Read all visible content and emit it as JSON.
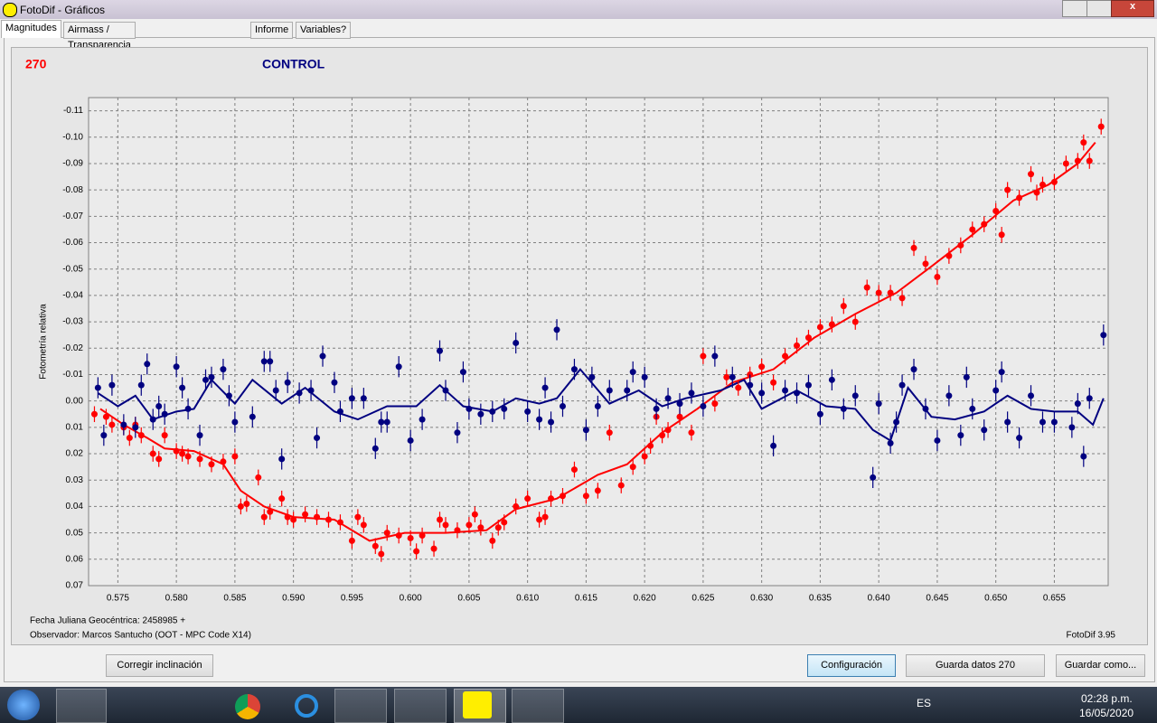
{
  "window": {
    "title": "FotoDif - Gráficos"
  },
  "tabs": [
    "Magnitudes",
    "Airmass / Transparencia / FWHM / Fondo",
    "Informe",
    "Variables?"
  ],
  "header": {
    "star": "270",
    "label": "CONTROL"
  },
  "footer": {
    "date_line": "Fecha Juliana Geocéntrica: 2458985 +",
    "observer": "Observador: Marcos Santucho (OOT - MPC Code X14)",
    "version": "FotoDif 3.95"
  },
  "buttons": [
    "Corregir inclinación",
    "Configuración",
    "Guarda datos 270",
    "Guardar como..."
  ],
  "taskbar": {
    "lang": "ES",
    "time": "02:28 p.m.",
    "date": "16/05/2020"
  },
  "chart_data": {
    "type": "scatter",
    "y_label": "Fotometría relativa",
    "xlim": [
      0.5725,
      0.6596
    ],
    "ylim": [
      0.07,
      -0.115
    ],
    "xticks": [
      0.575,
      {
        "value": 0.58,
        "label": "0.580"
      },
      0.585,
      {
        "value": 0.59,
        "label": "0.590"
      },
      0.595,
      {
        "value": 0.6,
        "label": "0.600"
      },
      0.605,
      {
        "value": 0.61,
        "label": "0.610"
      },
      0.615,
      {
        "value": 0.62,
        "label": "0.620"
      },
      0.625,
      {
        "value": 0.63,
        "label": "0.630"
      },
      0.635,
      {
        "value": 0.64,
        "label": "0.640"
      },
      0.645,
      {
        "value": 0.65,
        "label": "0.650"
      },
      0.655
    ],
    "yticks": [
      -0.11,
      {
        "value": -0.1,
        "label": "-0.10"
      },
      -0.09,
      -0.08,
      -0.07,
      -0.06,
      -0.05,
      -0.04,
      -0.03,
      -0.02,
      -0.01,
      {
        "value": 0,
        "label": "0.00"
      },
      0.01,
      0.02,
      0.03,
      0.04,
      0.05,
      0.06,
      0.07
    ],
    "grid": true,
    "series": [
      {
        "color": "#ff0000",
        "error": 0.003,
        "x": [
          0.573,
          0.574,
          0.5745,
          0.5755,
          0.576,
          0.5765,
          0.577,
          0.578,
          0.5785,
          0.579,
          0.58,
          0.5805,
          0.581,
          0.582,
          0.583,
          0.584,
          0.585,
          0.5855,
          0.586,
          0.587,
          0.5875,
          0.588,
          0.589,
          0.5895,
          0.59,
          0.591,
          0.592,
          0.593,
          0.594,
          0.595,
          0.5955,
          0.596,
          0.597,
          0.5975,
          0.598,
          0.599,
          0.6,
          0.6005,
          0.601,
          0.602,
          0.6025,
          0.603,
          0.604,
          0.605,
          0.6055,
          0.606,
          0.607,
          0.6075,
          0.608,
          0.609,
          0.61,
          0.611,
          0.6115,
          0.612,
          0.613,
          0.614,
          0.615,
          0.616,
          0.617,
          0.618,
          0.619,
          0.62,
          0.6205,
          0.621,
          0.6215,
          0.622,
          0.623,
          0.624,
          0.625,
          0.626,
          0.627,
          0.628,
          0.629,
          0.63,
          0.631,
          0.632,
          0.633,
          0.634,
          0.635,
          0.636,
          0.637,
          0.638,
          0.639,
          0.64,
          0.641,
          0.642,
          0.643,
          0.644,
          0.645,
          0.646,
          0.647,
          0.648,
          0.649,
          0.65,
          0.6505,
          0.651,
          0.652,
          0.653,
          0.6535,
          0.654,
          0.655,
          0.656,
          0.657,
          0.6575,
          0.658,
          0.659
        ],
        "values": [
          0.005,
          0.006,
          0.009,
          0.01,
          0.014,
          0.009,
          0.013,
          0.02,
          0.022,
          0.013,
          0.019,
          0.02,
          0.021,
          0.022,
          0.024,
          0.023,
          0.021,
          0.04,
          0.039,
          0.029,
          0.044,
          0.042,
          0.037,
          0.044,
          0.045,
          0.043,
          0.044,
          0.045,
          0.046,
          0.053,
          0.044,
          0.047,
          0.055,
          0.058,
          0.05,
          0.051,
          0.052,
          0.057,
          0.051,
          0.056,
          0.045,
          0.047,
          0.049,
          0.047,
          0.043,
          0.048,
          0.053,
          0.048,
          0.046,
          0.04,
          0.037,
          0.045,
          0.044,
          0.037,
          0.036,
          0.026,
          0.036,
          0.034,
          0.012,
          0.032,
          0.025,
          0.021,
          0.017,
          0.006,
          0.013,
          0.011,
          0.006,
          0.012,
          -0.017,
          0.001,
          -0.009,
          -0.005,
          -0.01,
          -0.013,
          -0.007,
          -0.017,
          -0.021,
          -0.024,
          -0.028,
          -0.029,
          -0.036,
          -0.03,
          -0.043,
          -0.041,
          -0.041,
          -0.039,
          -0.058,
          -0.052,
          -0.047,
          -0.055,
          -0.059,
          -0.065,
          -0.067,
          -0.072,
          -0.063,
          -0.08,
          -0.077,
          -0.086,
          -0.079,
          -0.082,
          -0.083,
          -0.09,
          -0.091,
          -0.098,
          -0.091,
          -0.104
        ]
      },
      {
        "color": "#000080",
        "error": 0.004,
        "x": [
          0.5733,
          0.5738,
          0.5745,
          0.5755,
          0.5765,
          0.577,
          0.5775,
          0.578,
          0.5785,
          0.579,
          0.58,
          0.5805,
          0.581,
          0.582,
          0.5825,
          0.583,
          0.584,
          0.5845,
          0.585,
          0.5865,
          0.5875,
          0.588,
          0.5885,
          0.589,
          0.5895,
          0.5905,
          0.5915,
          0.592,
          0.5925,
          0.5935,
          0.594,
          0.595,
          0.596,
          0.597,
          0.5975,
          0.598,
          0.599,
          0.6,
          0.601,
          0.6025,
          0.603,
          0.604,
          0.6045,
          0.605,
          0.606,
          0.607,
          0.608,
          0.609,
          0.61,
          0.611,
          0.6115,
          0.612,
          0.6125,
          0.613,
          0.614,
          0.615,
          0.6155,
          0.616,
          0.617,
          0.6185,
          0.619,
          0.62,
          0.621,
          0.622,
          0.623,
          0.624,
          0.625,
          0.626,
          0.6275,
          0.629,
          0.63,
          0.631,
          0.632,
          0.633,
          0.634,
          0.635,
          0.636,
          0.637,
          0.638,
          0.6395,
          0.64,
          0.641,
          0.6415,
          0.642,
          0.643,
          0.644,
          0.645,
          0.646,
          0.647,
          0.6475,
          0.648,
          0.649,
          0.65,
          0.6505,
          0.651,
          0.652,
          0.653,
          0.654,
          0.655,
          0.6565,
          0.657,
          0.6575,
          0.658,
          0.6592
        ],
        "values": [
          -0.005,
          0.013,
          -0.006,
          0.009,
          0.01,
          -0.006,
          -0.014,
          0.007,
          0.002,
          0.005,
          -0.013,
          -0.005,
          0.003,
          0.013,
          -0.008,
          -0.009,
          -0.012,
          -0.002,
          0.008,
          0.006,
          -0.015,
          -0.015,
          -0.004,
          0.022,
          -0.007,
          -0.003,
          -0.004,
          0.014,
          -0.017,
          -0.007,
          0.004,
          -0.001,
          -0.001,
          0.018,
          0.008,
          0.008,
          -0.013,
          0.015,
          0.007,
          -0.019,
          -0.004,
          0.012,
          -0.011,
          0.003,
          0.005,
          0.004,
          0.003,
          -0.022,
          0.004,
          0.007,
          -0.005,
          0.008,
          -0.027,
          0.002,
          -0.012,
          0.011,
          -0.009,
          0.002,
          -0.004,
          -0.004,
          -0.011,
          -0.009,
          0.003,
          -0.001,
          0.001,
          -0.003,
          0.002,
          -0.017,
          -0.009,
          -0.006,
          -0.003,
          0.017,
          -0.004,
          -0.003,
          -0.006,
          0.005,
          -0.008,
          0.003,
          -0.002,
          0.029,
          0.001,
          0.016,
          0.008,
          -0.006,
          -0.012,
          0.003,
          0.015,
          -0.002,
          0.013,
          -0.009,
          0.003,
          0.011,
          -0.004,
          -0.011,
          0.008,
          0.014,
          -0.002,
          0.008,
          0.008,
          0.01,
          0.001,
          0.021,
          -0.001,
          -0.025
        ]
      }
    ],
    "lines": [
      {
        "color": "#ff0000",
        "x": [
          0.5735,
          0.5755,
          0.5775,
          0.579,
          0.5815,
          0.584,
          0.5855,
          0.5875,
          0.59,
          0.5935,
          0.5965,
          0.5995,
          0.603,
          0.6065,
          0.609,
          0.6125,
          0.616,
          0.6185,
          0.6215,
          0.6245,
          0.6275,
          0.631,
          0.6345,
          0.638,
          0.6415,
          0.6445,
          0.648,
          0.6515,
          0.6545,
          0.657,
          0.6585
        ],
        "values": [
          0.003,
          0.009,
          0.014,
          0.018,
          0.019,
          0.024,
          0.034,
          0.04,
          0.044,
          0.045,
          0.053,
          0.05,
          0.05,
          0.049,
          0.041,
          0.037,
          0.028,
          0.024,
          0.012,
          0.003,
          -0.007,
          -0.012,
          -0.024,
          -0.033,
          -0.041,
          -0.051,
          -0.063,
          -0.076,
          -0.082,
          -0.09,
          -0.098
        ]
      },
      {
        "color": "#000080",
        "x": [
          0.5733,
          0.575,
          0.5765,
          0.578,
          0.58,
          0.5815,
          0.583,
          0.585,
          0.5865,
          0.589,
          0.591,
          0.5935,
          0.5955,
          0.598,
          0.6005,
          0.6025,
          0.6045,
          0.607,
          0.609,
          0.611,
          0.6125,
          0.6145,
          0.617,
          0.6195,
          0.6215,
          0.6235,
          0.6265,
          0.6285,
          0.63,
          0.633,
          0.6355,
          0.638,
          0.6395,
          0.641,
          0.6425,
          0.6445,
          0.6465,
          0.649,
          0.651,
          0.653,
          0.655,
          0.657,
          0.6583,
          0.6592
        ],
        "values": [
          -0.003,
          0.002,
          -0.002,
          0.007,
          0.004,
          0.003,
          -0.008,
          0.001,
          -0.008,
          0.001,
          -0.005,
          0.004,
          0.007,
          0.002,
          0.002,
          -0.006,
          0.002,
          0.004,
          -0.001,
          0.001,
          -0.001,
          -0.012,
          0.001,
          -0.004,
          0.002,
          -0.001,
          -0.004,
          -0.008,
          0.003,
          -0.004,
          0.002,
          0.003,
          0.011,
          0.015,
          -0.005,
          0.006,
          0.007,
          0.004,
          -0.002,
          0.003,
          0.004,
          0.004,
          0.009,
          -0.001
        ]
      }
    ]
  }
}
